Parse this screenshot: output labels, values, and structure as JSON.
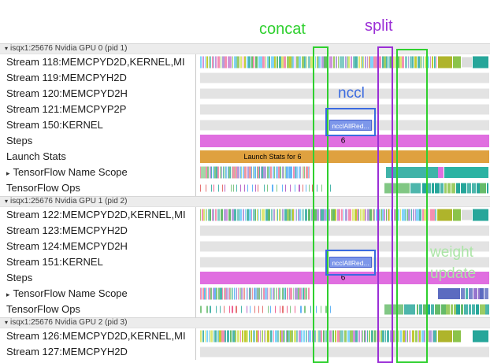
{
  "glyphs": {
    "collapse": "▾",
    "expand": "▸"
  },
  "annotations": {
    "concat": {
      "text": "concat",
      "color": "#2fd02f"
    },
    "split": {
      "text": "split",
      "color": "#9b2fd6"
    },
    "nccl": {
      "text": "nccl",
      "color": "#3a6ae0"
    },
    "weight_update": {
      "line1": "weight",
      "line2": "update",
      "color": "#abe5a6"
    }
  },
  "groups": [
    {
      "header": "isqx1:25676 Nvidia GPU 0 (pid 1)",
      "rows": [
        {
          "label": "Stream 118:MEMCPYD2D,KERNEL,MI",
          "track": "stream118"
        },
        {
          "label": "Stream 119:MEMCPYH2D",
          "track": "empty"
        },
        {
          "label": "Stream 120:MEMCPYD2H",
          "track": "empty"
        },
        {
          "label": "Stream 121:MEMCPYP2P",
          "track": "empty"
        },
        {
          "label": "Stream 150:KERNEL",
          "track": "nccl0"
        },
        {
          "label": "Steps",
          "track": "steps0"
        },
        {
          "label": "Launch Stats",
          "track": "launch0"
        },
        {
          "label": "TensorFlow Name Scope",
          "expandable": true,
          "track": "tfns0"
        },
        {
          "label": "TensorFlow Ops",
          "track": "tfops0"
        }
      ]
    },
    {
      "header": "isqx1:25676 Nvidia GPU 1 (pid 2)",
      "rows": [
        {
          "label": "Stream 122:MEMCPYD2D,KERNEL,MI",
          "track": "stream122"
        },
        {
          "label": "Stream 123:MEMCPYH2D",
          "track": "empty"
        },
        {
          "label": "Stream 124:MEMCPYD2H",
          "track": "empty"
        },
        {
          "label": "Stream 151:KERNEL",
          "track": "nccl1"
        },
        {
          "label": "Steps",
          "track": "steps1"
        },
        {
          "label": "TensorFlow Name Scope",
          "expandable": true,
          "track": "tfns1"
        },
        {
          "label": "TensorFlow Ops",
          "track": "tfops1"
        }
      ]
    },
    {
      "header": "isqx1:25676 Nvidia GPU 2 (pid 3)",
      "rows": [
        {
          "label": "Stream 126:MEMCPYD2D,KERNEL,MI",
          "track": "stream126"
        },
        {
          "label": "Stream 127:MEMCPYH2D",
          "track": "empty"
        }
      ]
    }
  ],
  "palettes": {
    "stream": [
      "#9ccc65",
      "#4db6ac",
      "#b39ddb",
      "#f48fb1",
      "#c0ca33",
      "#81d4fa",
      "#66bb6a",
      "#80cbc4",
      "#ce93d8",
      "#dce775"
    ],
    "tfns": [
      "#f48fb1",
      "#90caf9",
      "#a5d6a7",
      "#b39ddb",
      "#4db6ac",
      "#ef9a9a",
      "#81c784",
      "#64b5f6"
    ],
    "tfops": [
      "#e57373",
      "#81c784",
      "#64b5f6",
      "#ba68c8",
      "#4db6ac",
      "#f06292"
    ],
    "rightmix": [
      "#66bb6a",
      "#26a69a",
      "#9ccc65",
      "#4db6ac"
    ],
    "bluemix": [
      "#5c6bc0",
      "#7986cb",
      "#9575cd",
      "#4db6ac"
    ]
  },
  "tracks": {
    "empty": {
      "parts": [
        {
          "type": "seg",
          "from": 1.3,
          "to": 99.7,
          "color": "#e3e3e3",
          "h": 13,
          "name": "empty-track-band"
        }
      ]
    },
    "stream118": {
      "parts": [
        {
          "type": "dense",
          "from": 1.4,
          "to": 82,
          "seed": 11,
          "min": 0.2,
          "max": 0.9,
          "gap": [
            0.05,
            0.3
          ],
          "h": 15,
          "palette": "stream"
        },
        {
          "type": "seg",
          "from": 82.2,
          "to": 87.2,
          "color": "#afb42b",
          "h": 15
        },
        {
          "type": "seg",
          "from": 87.5,
          "to": 90.1,
          "color": "#8bc34a",
          "h": 15
        },
        {
          "type": "seg",
          "from": 90.4,
          "to": 93.8,
          "color": "#dcdcdc",
          "h": 13
        },
        {
          "type": "seg",
          "from": 94.1,
          "to": 99.6,
          "color": "#26a69a",
          "h": 15
        }
      ]
    },
    "stream122": {
      "parts": [
        {
          "type": "dense",
          "from": 1.4,
          "to": 82,
          "seed": 23,
          "min": 0.2,
          "max": 0.9,
          "gap": [
            0.05,
            0.3
          ],
          "h": 15,
          "palette": "stream"
        },
        {
          "type": "seg",
          "from": 82.2,
          "to": 87.2,
          "color": "#afb42b",
          "h": 15
        },
        {
          "type": "seg",
          "from": 87.5,
          "to": 90.1,
          "color": "#8bc34a",
          "h": 15
        },
        {
          "type": "seg",
          "from": 90.4,
          "to": 93.8,
          "color": "#dcdcdc",
          "h": 13
        },
        {
          "type": "seg",
          "from": 94.1,
          "to": 99.6,
          "color": "#26a69a",
          "h": 15
        }
      ]
    },
    "stream126": {
      "parts": [
        {
          "type": "dense",
          "from": 1.4,
          "to": 82,
          "seed": 37,
          "min": 0.2,
          "max": 0.9,
          "gap": [
            0.05,
            0.3
          ],
          "h": 15,
          "palette": "stream"
        },
        {
          "type": "seg",
          "from": 82.2,
          "to": 87.2,
          "color": "#afb42b",
          "h": 15
        },
        {
          "type": "seg",
          "from": 87.5,
          "to": 90.1,
          "color": "#8bc34a",
          "h": 15
        },
        {
          "type": "seg",
          "from": 94.1,
          "to": 99.6,
          "color": "#26a69a",
          "h": 15
        }
      ]
    },
    "nccl0": {
      "parts": [
        {
          "type": "seg",
          "from": 1.3,
          "to": 99.7,
          "color": "#e3e3e3",
          "h": 13,
          "name": "empty-track-band"
        },
        {
          "type": "seg",
          "from": 45.4,
          "to": 59.7,
          "color": "#7d97ea",
          "h": 14,
          "border": "#4a63cf",
          "text": "ncclAllRed...",
          "textColor": "#ffffff",
          "name": "nccl-all-reduce-bar"
        }
      ]
    },
    "nccl1": {
      "parts": [
        {
          "type": "seg",
          "from": 1.3,
          "to": 99.7,
          "color": "#e3e3e3",
          "h": 13,
          "name": "empty-track-band"
        },
        {
          "type": "seg",
          "from": 45.4,
          "to": 59.7,
          "color": "#7d97ea",
          "h": 14,
          "border": "#4a63cf",
          "text": "ncclAllRed...",
          "textColor": "#ffffff",
          "name": "nccl-all-reduce-bar"
        }
      ]
    },
    "steps0": {
      "parts": [
        {
          "type": "seg",
          "from": 1.3,
          "to": 99.7,
          "color": "#e06ee0",
          "h": 16,
          "name": "steps-bar"
        },
        {
          "type": "text",
          "at": 50,
          "text": "6",
          "size": 10,
          "color": "#000000",
          "name": "step-number-label"
        }
      ]
    },
    "steps1": {
      "parts": [
        {
          "type": "seg",
          "from": 1.3,
          "to": 99.7,
          "color": "#e06ee0",
          "h": 16,
          "name": "steps-bar"
        },
        {
          "type": "text",
          "at": 50,
          "text": "6",
          "size": 10,
          "color": "#000000",
          "name": "step-number-label"
        }
      ]
    },
    "launch0": {
      "parts": [
        {
          "type": "seg",
          "from": 1.3,
          "to": 99.7,
          "color": "#dfa13f",
          "h": 16,
          "name": "launch-stats-bar"
        },
        {
          "type": "text",
          "at": 26,
          "text": "Launch Stats for 6",
          "size": 9,
          "color": "#000000",
          "name": "launch-stats-label"
        }
      ]
    },
    "tfns0": {
      "parts": [
        {
          "type": "dense",
          "from": 1.4,
          "to": 38.5,
          "seed": 51,
          "min": 0.15,
          "max": 0.6,
          "gap": [
            0.02,
            0.2
          ],
          "h": 15,
          "palette": "tfns"
        },
        {
          "type": "seg",
          "from": 64.7,
          "to": 82.2,
          "color": "#3fb3a8",
          "h": 14
        },
        {
          "type": "seg",
          "from": 82.4,
          "to": 84.2,
          "color": "#e06ee0",
          "h": 14
        },
        {
          "type": "seg",
          "from": 84.4,
          "to": 99.6,
          "color": "#2bb3a3",
          "h": 14
        }
      ]
    },
    "tfops0": {
      "parts": [
        {
          "type": "dense",
          "from": 1.4,
          "to": 46,
          "seed": 77,
          "min": 0.15,
          "max": 0.5,
          "gap": [
            0.5,
            1.8
          ],
          "h": 9,
          "palette": "tfops"
        },
        {
          "type": "seg",
          "from": 64.2,
          "to": 72.6,
          "color": "#81c784",
          "h": 13
        },
        {
          "type": "seg",
          "from": 72.9,
          "to": 76.4,
          "color": "#4db6ac",
          "h": 13
        },
        {
          "type": "dense",
          "from": 77,
          "to": 99.6,
          "seed": 78,
          "min": 0.6,
          "max": 1.8,
          "gap": [
            0.05,
            0.4
          ],
          "h": 13,
          "palette": "rightmix"
        }
      ]
    },
    "tfns1": {
      "parts": [
        {
          "type": "dense",
          "from": 1.4,
          "to": 38.5,
          "seed": 63,
          "min": 0.15,
          "max": 0.6,
          "gap": [
            0.02,
            0.2
          ],
          "h": 15,
          "palette": "tfns"
        },
        {
          "type": "seg",
          "from": 82.4,
          "to": 89.8,
          "color": "#5c6bc0",
          "h": 14
        },
        {
          "type": "dense",
          "from": 90,
          "to": 99.6,
          "seed": 64,
          "min": 0.5,
          "max": 1.6,
          "gap": [
            0.05,
            0.3
          ],
          "h": 14,
          "palette": "bluemix"
        }
      ]
    },
    "tfops1": {
      "parts": [
        {
          "type": "dense",
          "from": 1.4,
          "to": 46,
          "seed": 89,
          "min": 0.15,
          "max": 0.5,
          "gap": [
            0.5,
            1.8
          ],
          "h": 9,
          "palette": "tfops"
        },
        {
          "type": "seg",
          "from": 64.2,
          "to": 70.6,
          "color": "#81c784",
          "h": 13
        },
        {
          "type": "seg",
          "from": 70.9,
          "to": 74.4,
          "color": "#4db6ac",
          "h": 13
        },
        {
          "type": "dense",
          "from": 75,
          "to": 99.6,
          "seed": 90,
          "min": 0.6,
          "max": 1.8,
          "gap": [
            0.05,
            0.4
          ],
          "h": 13,
          "palette": "rightmix"
        }
      ]
    }
  }
}
